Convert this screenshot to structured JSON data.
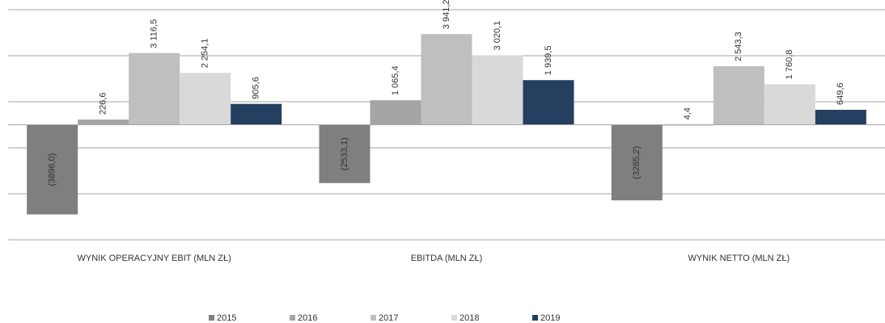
{
  "chart_data": {
    "type": "bar",
    "categories": [
      "WYNIK OPERACYJNY EBIT (MLN ZŁ)",
      "EBITDA (MLN ZŁ)",
      "WYNIK NETTO (MLN ZŁ)"
    ],
    "series": [
      {
        "name": "2015",
        "color": "#7f7f7f",
        "values": [
          -3896.0,
          -2533.1,
          -3285.2
        ],
        "value_labels": [
          "(3896,0)",
          "(2533,1)",
          "(3285,2)"
        ]
      },
      {
        "name": "2016",
        "color": "#a5a5a5",
        "values": [
          226.6,
          1065.4,
          4.4
        ],
        "value_labels": [
          "226,6",
          "1 065,4",
          "4,4"
        ]
      },
      {
        "name": "2017",
        "color": "#bfbfbf",
        "values": [
          3116.5,
          3941.2,
          2543.3
        ],
        "value_labels": [
          "3 116,5",
          "3 941,2",
          "2 543,3"
        ]
      },
      {
        "name": "2018",
        "color": "#d9d9d9",
        "values": [
          2254.1,
          3020.1,
          1760.8
        ],
        "value_labels": [
          "2 254,1",
          "3 020,1",
          "1 760,8"
        ]
      },
      {
        "name": "2019",
        "color": "#243f60",
        "values": [
          905.6,
          1939.5,
          649.6
        ],
        "value_labels": [
          "905,6",
          "1 939,5",
          "649,6"
        ]
      }
    ],
    "ylim": [
      -5000,
      5000
    ],
    "yticks": [
      -5000,
      -3000,
      -1000,
      0,
      1000,
      3000,
      5000
    ],
    "grid": true,
    "legend": "bottom"
  }
}
